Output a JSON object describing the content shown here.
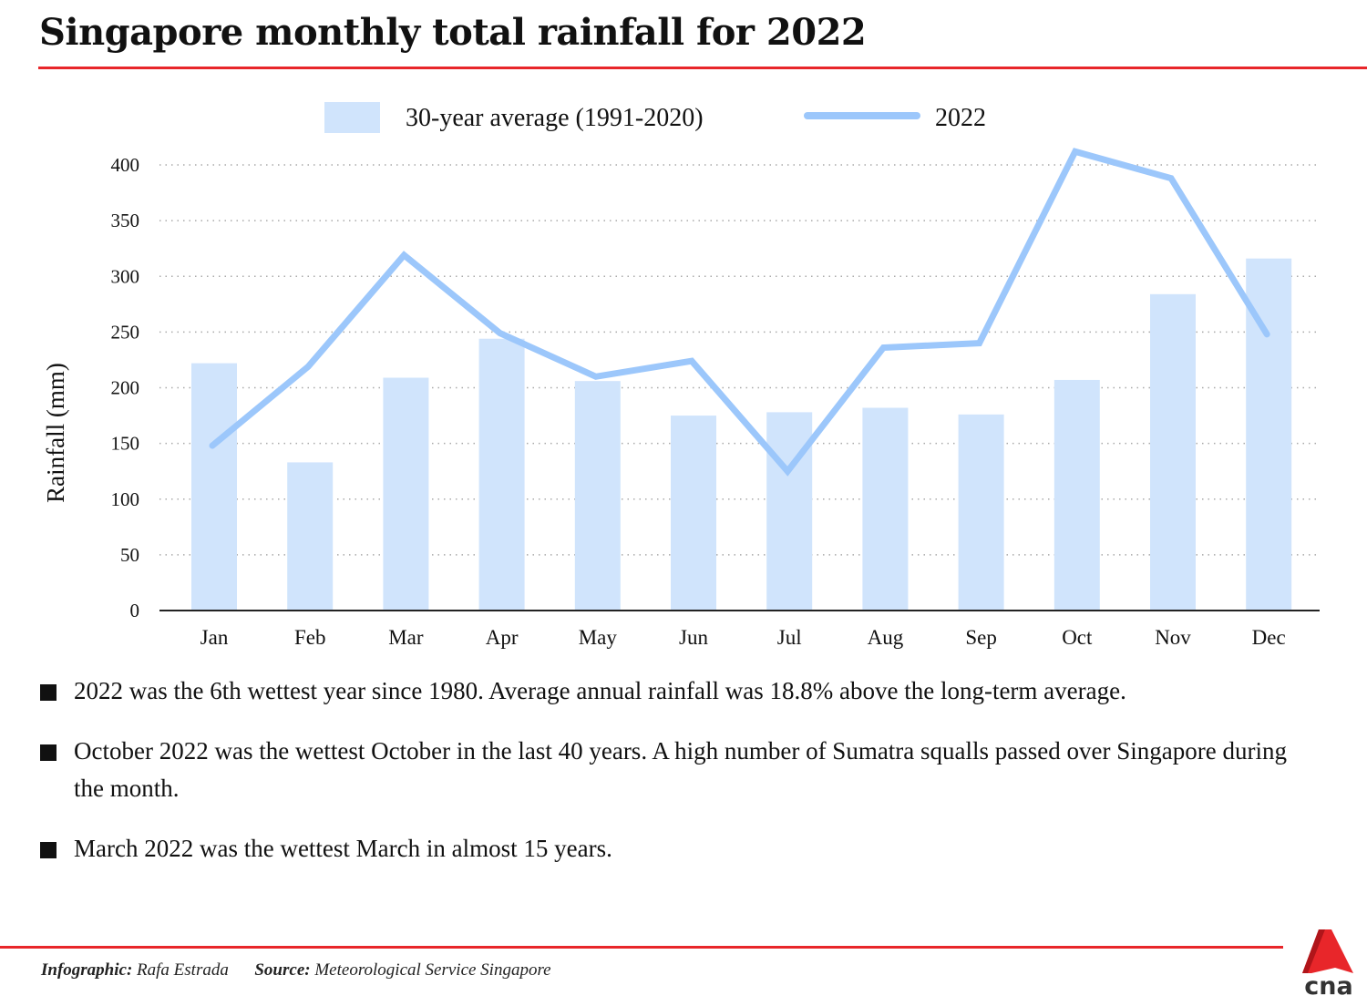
{
  "title": "Singapore monthly total rainfall for 2022",
  "chart_data": {
    "type": "bar+line",
    "ylabel": "Rainfall (mm)",
    "xlabel": "",
    "ylim": [
      0,
      400
    ],
    "yticks": [
      0,
      50,
      100,
      150,
      200,
      250,
      300,
      350,
      400
    ],
    "grid": "horizontal dotted",
    "legend_position": "top-center",
    "categories": [
      "Jan",
      "Feb",
      "Mar",
      "Apr",
      "May",
      "Jun",
      "Jul",
      "Aug",
      "Sep",
      "Oct",
      "Nov",
      "Dec"
    ],
    "series": [
      {
        "name": "30-year average (1991-2020)",
        "type": "bar",
        "color": "#d0e4fc",
        "values": [
          222,
          133,
          209,
          244,
          206,
          175,
          178,
          182,
          176,
          207,
          284,
          316
        ]
      },
      {
        "name": "2022",
        "type": "line",
        "color": "#9cc7fb",
        "values": [
          148,
          219,
          319,
          249,
          210,
          224,
          125,
          236,
          240,
          412,
          388,
          248
        ]
      }
    ]
  },
  "bullets": [
    "2022 was the 6th wettest year since 1980. Average annual rainfall was 18.8% above the long-term average.",
    "October 2022 was the wettest October in the last 40 years. A high number of Sumatra squalls passed over Singapore during the month.",
    "March 2022 was the wettest March in almost 15 years."
  ],
  "footer": {
    "credit_label": "Infographic:",
    "credit": "Rafa Estrada",
    "source_label": "Source:",
    "source": "Meteorological Service Singapore"
  },
  "logo": {
    "text": "cna",
    "color": "#e8262a"
  }
}
